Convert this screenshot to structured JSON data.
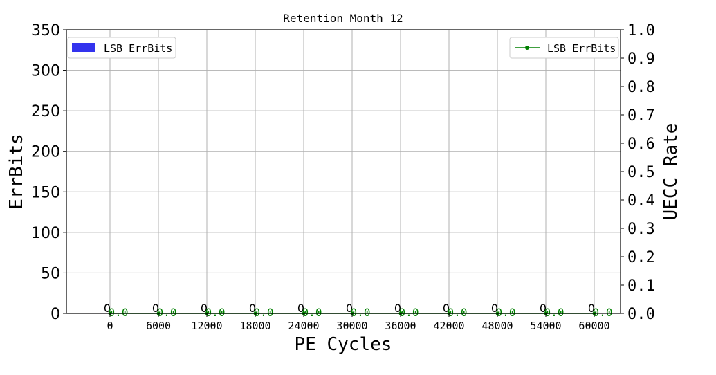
{
  "chart_data": {
    "type": "bar",
    "title": "Retention Month 12",
    "xlabel": "PE Cycles",
    "ylabel": "ErrBits",
    "y2label": "UECC Rate",
    "categories": [
      "0",
      "6000",
      "12000",
      "18000",
      "24000",
      "30000",
      "36000",
      "42000",
      "48000",
      "54000",
      "60000"
    ],
    "ylim": [
      0,
      350
    ],
    "yticks": [
      "0",
      "50",
      "100",
      "150",
      "200",
      "250",
      "300",
      "350"
    ],
    "y2lim": [
      0,
      1.0
    ],
    "y2ticks": [
      "0.0",
      "0.1",
      "0.2",
      "0.3",
      "0.4",
      "0.5",
      "0.6",
      "0.7",
      "0.8",
      "0.9",
      "1.0"
    ],
    "grid": true,
    "series": [
      {
        "name": "LSB ErrBits",
        "kind": "bar",
        "axis": "left",
        "color": "#3333ee",
        "values": [
          0,
          0,
          0,
          0,
          0,
          0,
          0,
          0,
          0,
          0,
          0
        ],
        "data_labels": [
          "0",
          "0",
          "0",
          "0",
          "0",
          "0",
          "0",
          "0",
          "0",
          "0",
          "0"
        ]
      },
      {
        "name": "LSB ErrBits",
        "kind": "line",
        "axis": "right",
        "color": "#008000",
        "values": [
          0.0,
          0.0,
          0.0,
          0.0,
          0.0,
          0.0,
          0.0,
          0.0,
          0.0,
          0.0,
          0.0
        ],
        "data_labels": [
          "0.0",
          "0.0",
          "0.0",
          "0.0",
          "0.0",
          "0.0",
          "0.0",
          "0.0",
          "0.0",
          "0.0",
          "0.0"
        ]
      }
    ],
    "legend_left": {
      "placement": "upper-left",
      "label": "LSB ErrBits"
    },
    "legend_right": {
      "placement": "upper-right",
      "label": "LSB ErrBits"
    }
  }
}
